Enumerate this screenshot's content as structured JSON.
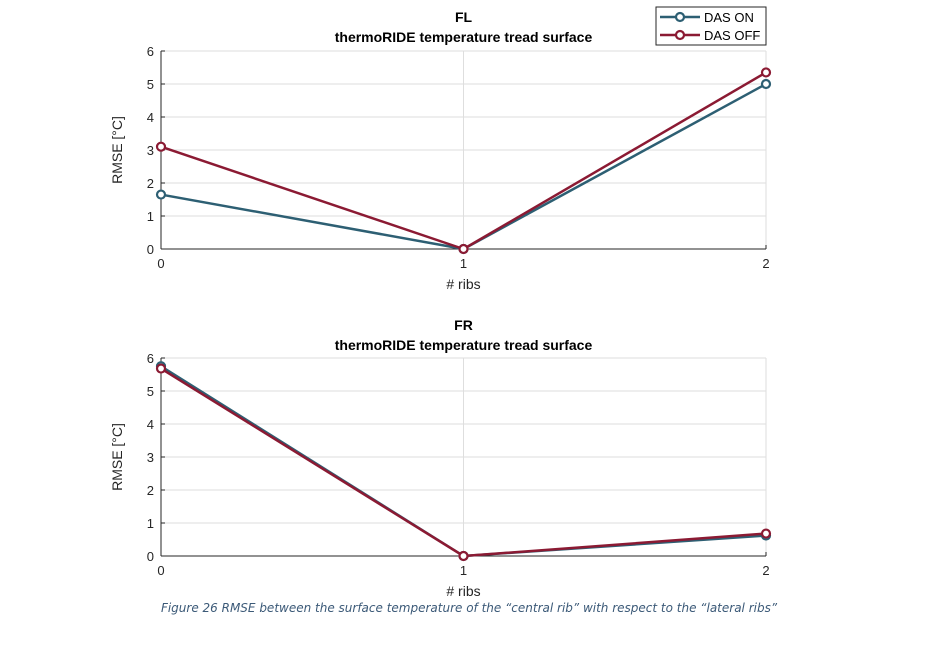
{
  "colors": {
    "das_on": "#2d5f73",
    "das_off": "#8b1a33",
    "grid": "#dedede",
    "axis": "#262626"
  },
  "legend": {
    "items": [
      "DAS ON",
      "DAS OFF"
    ],
    "placement": "top-right"
  },
  "caption": "Figure 26 RMSE between the surface temperature of the “central rib” with respect to the “lateral ribs”",
  "chart_data": [
    {
      "type": "line",
      "title": "FL",
      "subtitle": "thermoRIDE temperature tread surface",
      "xlabel": "# ribs",
      "ylabel": "RMSE [°C]",
      "x": [
        0,
        1,
        2
      ],
      "xlim": [
        0,
        2
      ],
      "ylim": [
        0,
        6
      ],
      "xticks": [
        "0",
        "1",
        "2"
      ],
      "yticks": [
        "0",
        "1",
        "2",
        "3",
        "4",
        "5",
        "6"
      ],
      "grid": true,
      "series": [
        {
          "name": "DAS ON",
          "values": [
            1.65,
            0.0,
            5.0
          ]
        },
        {
          "name": "DAS OFF",
          "values": [
            3.1,
            0.0,
            5.35
          ]
        }
      ]
    },
    {
      "type": "line",
      "title": "FR",
      "subtitle": "thermoRIDE temperature tread surface",
      "xlabel": "# ribs",
      "ylabel": "RMSE [°C]",
      "x": [
        0,
        1,
        2
      ],
      "xlim": [
        0,
        2
      ],
      "ylim": [
        0,
        6
      ],
      "xticks": [
        "0",
        "1",
        "2"
      ],
      "yticks": [
        "0",
        "1",
        "2",
        "3",
        "4",
        "5",
        "6"
      ],
      "grid": true,
      "series": [
        {
          "name": "DAS ON",
          "values": [
            5.75,
            0.0,
            0.62
          ]
        },
        {
          "name": "DAS OFF",
          "values": [
            5.68,
            0.0,
            0.68
          ]
        }
      ]
    }
  ]
}
